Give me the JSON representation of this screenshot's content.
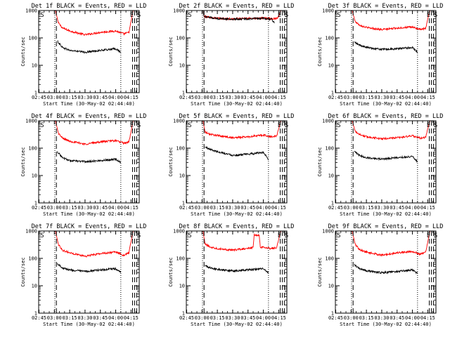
{
  "figure": {
    "xlabel": "Start Time (30-May-02 02:44:40)",
    "ylabel": "Counts/sec",
    "x_tick_labels": [
      "02:45",
      "03:00",
      "03:15",
      "03:30",
      "03:45",
      "04:00",
      "04:15"
    ],
    "y_tick_labels": [
      "1",
      "10",
      "100",
      "1000"
    ],
    "colors": {
      "events": "#000000",
      "lld": "#ff0000",
      "axes": "#000000"
    }
  },
  "chart_data": [
    {
      "type": "line",
      "title": "Det 1f BLACK = Events, RED = LLD",
      "scale": "log",
      "xlim": [
        "02:44:40",
        "04:23:00"
      ],
      "ylim": [
        1,
        1000
      ],
      "markers": [
        {
          "label": "S",
          "time": "02:45"
        },
        {
          "label": "E",
          "time": "04:14"
        },
        {
          "label": "S",
          "time": "04:21"
        }
      ],
      "vlines": [
        {
          "time": "03:00:30",
          "style": "dotted"
        },
        {
          "time": "03:02:00",
          "style": "dashed"
        },
        {
          "time": "04:05:00",
          "style": "dotted"
        },
        {
          "time": "04:16:30",
          "style": "dashed"
        },
        {
          "time": "04:18:30",
          "style": "dashed"
        },
        {
          "time": "04:20:30",
          "style": "dashed"
        }
      ],
      "series": [
        {
          "name": "RED = LLD",
          "color": "#ff0000",
          "x": [
            "03:01",
            "03:04",
            "03:08",
            "03:15",
            "03:30",
            "03:45",
            "04:00",
            "04:08",
            "04:13",
            "04:15",
            "04:17"
          ],
          "y": [
            1000,
            350,
            230,
            180,
            130,
            160,
            180,
            140,
            160,
            400,
            1000
          ]
        },
        {
          "name": "BLACK = Events",
          "color": "#000000",
          "x": [
            "03:03",
            "03:08",
            "03:15",
            "03:30",
            "03:45",
            "04:00",
            "04:05"
          ],
          "y": [
            75,
            45,
            35,
            30,
            35,
            40,
            30
          ]
        }
      ]
    },
    {
      "type": "line",
      "title": "Det 2f BLACK = Events, RED = LLD",
      "scale": "log",
      "xlim": [
        "02:44:40",
        "04:23:00"
      ],
      "ylim": [
        1,
        1000
      ],
      "markers": [
        {
          "label": "S",
          "time": "02:45"
        },
        {
          "label": "E",
          "time": "04:14"
        },
        {
          "label": "S",
          "time": "04:21"
        }
      ],
      "vlines": [
        {
          "time": "03:00:30",
          "style": "dotted"
        },
        {
          "time": "03:02:00",
          "style": "dashed"
        },
        {
          "time": "04:05:00",
          "style": "dotted"
        },
        {
          "time": "04:16:30",
          "style": "dashed"
        },
        {
          "time": "04:18:30",
          "style": "dashed"
        },
        {
          "time": "04:20:30",
          "style": "dashed"
        }
      ],
      "series": [
        {
          "name": "RED = LLD",
          "color": "#ff0000",
          "x": [
            "03:01",
            "03:02",
            "03:08",
            "03:15",
            "03:30",
            "03:45",
            "04:00",
            "04:08",
            "04:13",
            "04:15",
            "04:17"
          ],
          "y": [
            1000,
            600,
            560,
            520,
            490,
            520,
            530,
            500,
            520,
            600,
            1000
          ]
        },
        {
          "name": "BLACK = Events",
          "color": "#000000",
          "x": [
            "03:01",
            "03:02",
            "03:08",
            "03:15",
            "03:30",
            "03:45",
            "04:00",
            "04:08",
            "04:11"
          ],
          "y": [
            1000,
            600,
            560,
            510,
            480,
            500,
            510,
            480,
            350
          ]
        }
      ]
    },
    {
      "type": "line",
      "title": "Det 3f BLACK = Events, RED = LLD",
      "scale": "log",
      "xlim": [
        "02:44:40",
        "04:23:00"
      ],
      "ylim": [
        1,
        1000
      ],
      "markers": [
        {
          "label": "S",
          "time": "02:45"
        },
        {
          "label": "E",
          "time": "04:14"
        },
        {
          "label": "S",
          "time": "04:21"
        }
      ],
      "vlines": [
        {
          "time": "03:00:30",
          "style": "dotted"
        },
        {
          "time": "03:02:00",
          "style": "dashed"
        },
        {
          "time": "04:05:00",
          "style": "dotted"
        },
        {
          "time": "04:16:30",
          "style": "dashed"
        },
        {
          "time": "04:18:30",
          "style": "dashed"
        },
        {
          "time": "04:20:30",
          "style": "dashed"
        }
      ],
      "series": [
        {
          "name": "RED = LLD",
          "color": "#ff0000",
          "x": [
            "03:01",
            "03:04",
            "03:08",
            "03:15",
            "03:30",
            "03:45",
            "04:00",
            "04:08",
            "04:13",
            "04:15",
            "04:17"
          ],
          "y": [
            1000,
            400,
            300,
            240,
            200,
            230,
            250,
            200,
            220,
            500,
            1000
          ]
        },
        {
          "name": "BLACK = Events",
          "color": "#000000",
          "x": [
            "03:03",
            "03:08",
            "03:15",
            "03:30",
            "03:45",
            "04:00",
            "04:05"
          ],
          "y": [
            70,
            55,
            45,
            38,
            40,
            45,
            30
          ]
        }
      ]
    },
    {
      "type": "line",
      "title": "Det 4f BLACK = Events, RED = LLD",
      "scale": "log",
      "xlim": [
        "02:44:40",
        "04:23:00"
      ],
      "ylim": [
        1,
        1000
      ],
      "markers": [
        {
          "label": "S",
          "time": "02:45"
        },
        {
          "label": "E",
          "time": "04:14"
        },
        {
          "label": "S",
          "time": "04:21"
        }
      ],
      "vlines": [
        {
          "time": "03:00:30",
          "style": "dotted"
        },
        {
          "time": "03:02:00",
          "style": "dashed"
        },
        {
          "time": "04:05:00",
          "style": "dotted"
        },
        {
          "time": "04:16:30",
          "style": "dashed"
        },
        {
          "time": "04:18:30",
          "style": "dashed"
        },
        {
          "time": "04:20:30",
          "style": "dashed"
        }
      ],
      "series": [
        {
          "name": "RED = LLD",
          "color": "#ff0000",
          "x": [
            "03:01",
            "03:04",
            "03:08",
            "03:15",
            "03:30",
            "03:45",
            "04:00",
            "04:08",
            "04:13",
            "04:15",
            "04:17"
          ],
          "y": [
            1000,
            350,
            230,
            180,
            140,
            170,
            190,
            150,
            170,
            400,
            1000
          ]
        },
        {
          "name": "BLACK = Events",
          "color": "#000000",
          "x": [
            "03:03",
            "03:08",
            "03:15",
            "03:30",
            "03:45",
            "04:00",
            "04:05"
          ],
          "y": [
            75,
            45,
            35,
            32,
            35,
            40,
            30
          ]
        }
      ]
    },
    {
      "type": "line",
      "title": "Det 5f BLACK = Events, RED = LLD",
      "scale": "log",
      "xlim": [
        "02:44:40",
        "04:23:00"
      ],
      "ylim": [
        1,
        1000
      ],
      "markers": [
        {
          "label": "S",
          "time": "02:45"
        },
        {
          "label": "E",
          "time": "04:14"
        },
        {
          "label": "S",
          "time": "04:21"
        }
      ],
      "vlines": [
        {
          "time": "03:00:30",
          "style": "dotted"
        },
        {
          "time": "03:02:00",
          "style": "dashed"
        },
        {
          "time": "04:05:00",
          "style": "dotted"
        },
        {
          "time": "04:16:30",
          "style": "dashed"
        },
        {
          "time": "04:18:30",
          "style": "dashed"
        },
        {
          "time": "04:20:30",
          "style": "dashed"
        }
      ],
      "series": [
        {
          "name": "RED = LLD",
          "color": "#ff0000",
          "x": [
            "03:01",
            "03:03",
            "03:08",
            "03:15",
            "03:30",
            "03:45",
            "04:00",
            "04:08",
            "04:13",
            "04:15",
            "04:17"
          ],
          "y": [
            1000,
            380,
            320,
            290,
            240,
            260,
            300,
            260,
            280,
            500,
            1000
          ]
        },
        {
          "name": "BLACK = Events",
          "color": "#000000",
          "x": [
            "03:03",
            "03:08",
            "03:15",
            "03:30",
            "03:45",
            "04:00",
            "04:05"
          ],
          "y": [
            110,
            90,
            75,
            55,
            60,
            70,
            40
          ]
        }
      ]
    },
    {
      "type": "line",
      "title": "Det 6f BLACK = Events, RED = LLD",
      "scale": "log",
      "xlim": [
        "02:44:40",
        "04:23:00"
      ],
      "ylim": [
        1,
        1000
      ],
      "markers": [
        {
          "label": "S",
          "time": "02:45"
        },
        {
          "label": "E",
          "time": "04:14"
        },
        {
          "label": "S",
          "time": "04:21"
        }
      ],
      "vlines": [
        {
          "time": "03:00:30",
          "style": "dotted"
        },
        {
          "time": "03:02:00",
          "style": "dashed"
        },
        {
          "time": "04:05:00",
          "style": "dotted"
        },
        {
          "time": "04:16:30",
          "style": "dashed"
        },
        {
          "time": "04:18:30",
          "style": "dashed"
        },
        {
          "time": "04:20:30",
          "style": "dashed"
        }
      ],
      "series": [
        {
          "name": "RED = LLD",
          "color": "#ff0000",
          "x": [
            "03:01",
            "03:04",
            "03:08",
            "03:15",
            "03:30",
            "03:45",
            "04:00",
            "04:08",
            "04:13",
            "04:15",
            "04:17"
          ],
          "y": [
            1000,
            420,
            320,
            260,
            220,
            240,
            280,
            230,
            250,
            500,
            1000
          ]
        },
        {
          "name": "BLACK = Events",
          "color": "#000000",
          "x": [
            "03:03",
            "03:08",
            "03:15",
            "03:30",
            "03:45",
            "04:00",
            "04:05"
          ],
          "y": [
            75,
            55,
            45,
            40,
            45,
            50,
            32
          ]
        }
      ]
    },
    {
      "type": "line",
      "title": "Det 7f BLACK = Events, RED = LLD",
      "scale": "log",
      "xlim": [
        "02:44:40",
        "04:23:00"
      ],
      "ylim": [
        1,
        1000
      ],
      "markers": [
        {
          "label": "S",
          "time": "02:45"
        },
        {
          "label": "E",
          "time": "04:14"
        },
        {
          "label": "S",
          "time": "04:21"
        }
      ],
      "vlines": [
        {
          "time": "03:00:30",
          "style": "dotted"
        },
        {
          "time": "03:02:00",
          "style": "dashed"
        },
        {
          "time": "04:05:00",
          "style": "dotted"
        },
        {
          "time": "04:16:30",
          "style": "dashed"
        },
        {
          "time": "04:18:30",
          "style": "dashed"
        },
        {
          "time": "04:20:30",
          "style": "dashed"
        }
      ],
      "series": [
        {
          "name": "RED = LLD",
          "color": "#ff0000",
          "x": [
            "03:01",
            "03:04",
            "03:08",
            "03:15",
            "03:30",
            "03:45",
            "04:00",
            "04:08",
            "04:13",
            "04:15",
            "04:17"
          ],
          "y": [
            1000,
            320,
            200,
            160,
            120,
            150,
            170,
            130,
            160,
            400,
            1000
          ]
        },
        {
          "name": "BLACK = Events",
          "color": "#000000",
          "x": [
            "03:03",
            "03:08",
            "03:15",
            "03:30",
            "03:45",
            "04:00",
            "04:05"
          ],
          "y": [
            65,
            45,
            38,
            33,
            38,
            42,
            30
          ]
        }
      ]
    },
    {
      "type": "line",
      "title": "Det 8f BLACK = Events, RED = LLD",
      "scale": "log",
      "xlim": [
        "02:44:40",
        "04:23:00"
      ],
      "ylim": [
        1,
        1000
      ],
      "markers": [
        {
          "label": "S",
          "time": "02:45"
        },
        {
          "label": "E",
          "time": "04:14"
        },
        {
          "label": "S",
          "time": "04:21"
        }
      ],
      "vlines": [
        {
          "time": "03:00:30",
          "style": "dotted"
        },
        {
          "time": "03:02:00",
          "style": "dashed"
        },
        {
          "time": "04:05:00",
          "style": "dotted"
        },
        {
          "time": "04:16:30",
          "style": "dashed"
        },
        {
          "time": "04:18:30",
          "style": "dashed"
        },
        {
          "time": "04:20:30",
          "style": "dashed"
        }
      ],
      "series": [
        {
          "name": "RED = LLD",
          "color": "#ff0000",
          "x": [
            "03:01",
            "03:03",
            "03:08",
            "03:15",
            "03:30",
            "03:45",
            "03:50",
            "03:51",
            "03:56",
            "03:57",
            "04:00",
            "04:08",
            "04:13",
            "04:15",
            "04:17"
          ],
          "y": [
            1000,
            330,
            260,
            230,
            200,
            230,
            250,
            700,
            700,
            250,
            260,
            230,
            250,
            500,
            1000
          ]
        },
        {
          "name": "BLACK = Events",
          "color": "#000000",
          "x": [
            "03:03",
            "03:08",
            "03:15",
            "03:30",
            "03:45",
            "04:00",
            "04:05"
          ],
          "y": [
            55,
            45,
            40,
            35,
            38,
            42,
            30
          ]
        }
      ]
    },
    {
      "type": "line",
      "title": "Det 9f BLACK = Events, RED = LLD",
      "scale": "log",
      "xlim": [
        "02:44:40",
        "04:23:00"
      ],
      "ylim": [
        1,
        1000
      ],
      "markers": [
        {
          "label": "S",
          "time": "02:45"
        },
        {
          "label": "E",
          "time": "04:14"
        },
        {
          "label": "S",
          "time": "04:21"
        }
      ],
      "vlines": [
        {
          "time": "03:00:30",
          "style": "dotted"
        },
        {
          "time": "03:02:00",
          "style": "dashed"
        },
        {
          "time": "04:05:00",
          "style": "dotted"
        },
        {
          "time": "04:16:30",
          "style": "dashed"
        },
        {
          "time": "04:18:30",
          "style": "dashed"
        },
        {
          "time": "04:20:30",
          "style": "dashed"
        }
      ],
      "series": [
        {
          "name": "RED = LLD",
          "color": "#ff0000",
          "x": [
            "03:01",
            "03:04",
            "03:08",
            "03:15",
            "03:30",
            "03:45",
            "04:00",
            "04:08",
            "04:13",
            "04:15",
            "04:17"
          ],
          "y": [
            1000,
            330,
            210,
            170,
            130,
            160,
            180,
            140,
            170,
            400,
            1000
          ]
        },
        {
          "name": "BLACK = Events",
          "color": "#000000",
          "x": [
            "03:03",
            "03:08",
            "03:15",
            "03:30",
            "03:45",
            "04:00",
            "04:05"
          ],
          "y": [
            60,
            42,
            35,
            30,
            33,
            38,
            28
          ]
        }
      ]
    }
  ]
}
